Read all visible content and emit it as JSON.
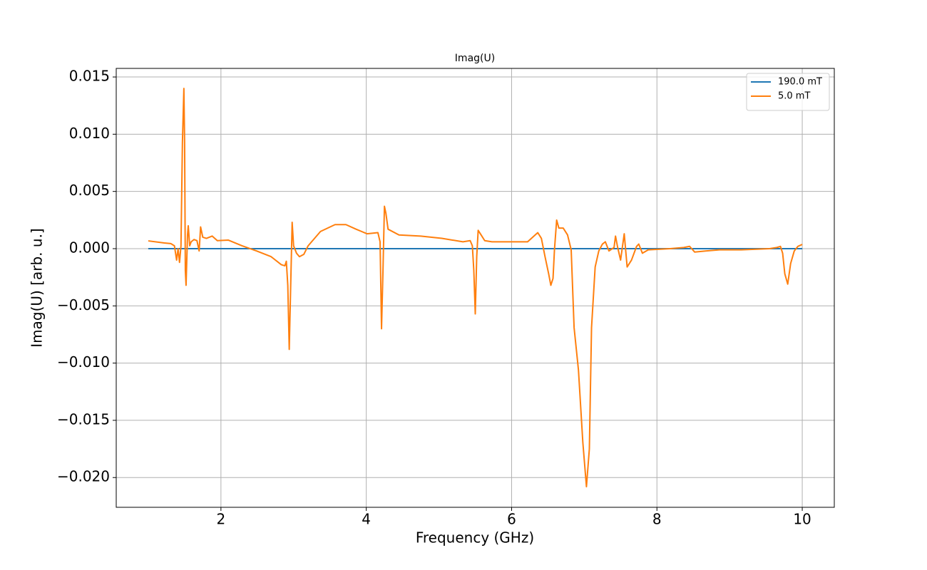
{
  "chart_data": {
    "type": "line",
    "title": "Imag(U)",
    "x_label": "Frequency (GHz)",
    "y_label": "Imag(U) [arb. u.]",
    "xlim": [
      0.559,
      10.441
    ],
    "ylim": [
      -0.0226,
      0.01575
    ],
    "xticks": [
      2,
      4,
      6,
      8,
      10
    ],
    "yticks": [
      {
        "value": -0.02,
        "label": "−0.020"
      },
      {
        "value": -0.015,
        "label": "−0.015"
      },
      {
        "value": -0.01,
        "label": "−0.010"
      },
      {
        "value": -0.005,
        "label": "−0.005"
      },
      {
        "value": 0,
        "label": "0.000"
      },
      0.005,
      {
        "value": 0.01,
        "label": "0.010"
      },
      0.015
    ],
    "grid": true,
    "legend": "upper-right",
    "series": [
      {
        "name": "190.0 mT",
        "color": "#1f77b4",
        "x": [
          1,
          10
        ],
        "values": [
          0,
          0
        ]
      },
      {
        "name": "5.0 mT",
        "color": "#ff7f0e",
        "x": [
          1.0,
          1.22,
          1.31,
          1.36,
          1.39,
          1.41,
          1.43,
          1.45,
          1.47,
          1.49,
          1.5,
          1.51,
          1.52,
          1.54,
          1.55,
          1.57,
          1.59,
          1.63,
          1.67,
          1.7,
          1.72,
          1.75,
          1.8,
          1.88,
          1.95,
          2.1,
          2.29,
          2.49,
          2.69,
          2.83,
          2.88,
          2.9,
          2.92,
          2.94,
          2.96,
          2.98,
          3.0,
          3.04,
          3.08,
          3.14,
          3.2,
          3.37,
          3.57,
          3.72,
          3.86,
          4.01,
          4.16,
          4.19,
          4.21,
          4.23,
          4.25,
          4.27,
          4.3,
          4.45,
          4.75,
          5.04,
          5.33,
          5.43,
          5.46,
          5.48,
          5.5,
          5.52,
          5.54,
          5.58,
          5.63,
          5.73,
          6.02,
          6.22,
          6.36,
          6.41,
          6.46,
          6.51,
          6.54,
          6.57,
          6.59,
          6.62,
          6.65,
          6.71,
          6.77,
          6.82,
          6.86,
          6.92,
          6.98,
          7.03,
          7.07,
          7.1,
          7.15,
          7.2,
          7.25,
          7.29,
          7.34,
          7.41,
          7.43,
          7.46,
          7.5,
          7.55,
          7.59,
          7.65,
          7.72,
          7.75,
          7.8,
          7.88,
          8.18,
          8.37,
          8.45,
          8.52,
          8.67,
          8.86,
          9.16,
          9.55,
          9.65,
          9.7,
          9.73,
          9.76,
          9.8,
          9.84,
          9.89,
          9.94,
          10.0
        ],
        "values": [
          0.00068,
          0.0005,
          0.00044,
          0.00025,
          -0.001,
          0,
          -0.0012,
          0.00025,
          0.0093,
          0.014,
          0.0093,
          -0.0019,
          -0.0032,
          0.0012,
          0.002,
          0.00025,
          0.0006,
          0.0008,
          0.0007,
          -0.0002,
          0.0019,
          0.001,
          0.0009,
          0.0011,
          0.0007,
          0.00075,
          0.00025,
          -0.0002,
          -0.0007,
          -0.0014,
          -0.0015,
          -0.0011,
          -0.0032,
          -0.0088,
          -0.0032,
          0.0023,
          0.00025,
          -0.0004,
          -0.0007,
          -0.0005,
          0.00025,
          0.0015,
          0.0021,
          0.0021,
          0.0017,
          0.0013,
          0.0014,
          0.0006,
          -0.007,
          -0.0019,
          0.0037,
          0.0031,
          0.0017,
          0.0012,
          0.0011,
          0.0009,
          0.0006,
          0.0007,
          0.00025,
          -0.0019,
          -0.0057,
          -0.0007,
          0.0016,
          0.0012,
          0.0007,
          0.0006,
          0.0006,
          0.0006,
          0.0014,
          0.0009,
          -0.0007,
          -0.0022,
          -0.0032,
          -0.0026,
          -0.0001,
          0.0025,
          0.0018,
          0.0018,
          0.0012,
          -0.0001,
          -0.0069,
          -0.0106,
          -0.0169,
          -0.0208,
          -0.0175,
          -0.0069,
          -0.0016,
          -0.0002,
          0.0004,
          0.0006,
          -0.0002,
          0.0001,
          0.0011,
          0.0001,
          -0.001,
          0.0013,
          -0.0016,
          -0.001,
          0.0002,
          0.0004,
          -0.0004,
          -0.0001,
          0,
          0.0001,
          0.0002,
          -0.0003,
          -0.0002,
          -0.0001,
          -0.0001,
          0,
          0.0001,
          0.0002,
          -0.0004,
          -0.0022,
          -0.0031,
          -0.0013,
          -0.0002,
          0.0002,
          0.00037
        ]
      }
    ]
  }
}
